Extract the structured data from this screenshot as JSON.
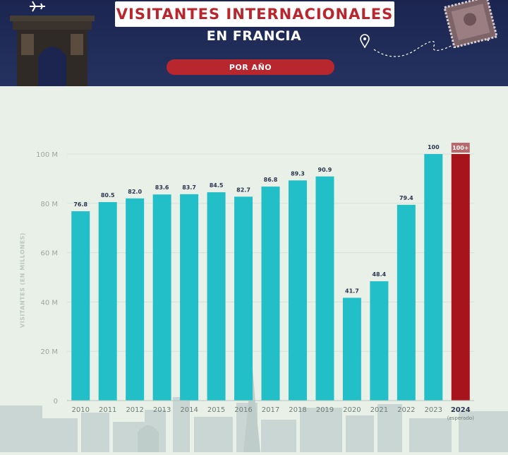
{
  "header": {
    "title": "VISITANTES INTERNACIONALES",
    "subtitle": "EN FRANCIA",
    "pill": "POR AÑO"
  },
  "colors": {
    "bar": "#22bfc9",
    "bar_highlight": "#a8141b",
    "header_bg": "#1b2550",
    "accent": "#b8262e",
    "plot_bg": "#e8f0e8"
  },
  "chart_data": {
    "type": "bar",
    "title": "VISITANTES INTERNACIONALES EN FRANCIA",
    "subtitle": "POR AÑO",
    "xlabel": "",
    "ylabel": "VISITANTES (EN MILLONES)",
    "ylim": [
      0,
      100
    ],
    "yticks": [
      0,
      20,
      40,
      60,
      80,
      100
    ],
    "ytick_labels": [
      "0",
      "20 M",
      "40 M",
      "60 M",
      "80 M",
      "100 M"
    ],
    "categories": [
      "2010",
      "2011",
      "2012",
      "2013",
      "2014",
      "2015",
      "2016",
      "2017",
      "2018",
      "2019",
      "2020",
      "2021",
      "2022",
      "2023",
      "2024"
    ],
    "values": [
      76.8,
      80.5,
      82.0,
      83.6,
      83.7,
      84.5,
      82.7,
      86.8,
      89.3,
      90.9,
      41.7,
      48.4,
      79.4,
      100,
      100
    ],
    "data_labels": [
      "76.8",
      "80.5",
      "82.0",
      "83.6",
      "83.7",
      "84.5",
      "82.7",
      "86.8",
      "89.3",
      "90.9",
      "41.7",
      "48.4",
      "79.4",
      "100",
      "100+"
    ],
    "highlight_index": 14,
    "highlight_note": "(esperado)",
    "grid": true
  }
}
